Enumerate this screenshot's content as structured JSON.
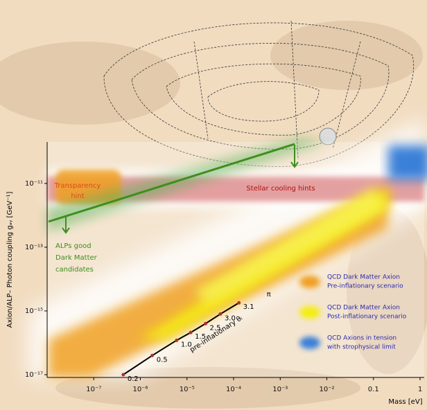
{
  "chart_data": {
    "type": "regions",
    "x_label": "Mass [eV]",
    "y_label": "Axion/ALP– Photon coupling gₐᵧ [GeV⁻¹]",
    "log_x": true,
    "log_y": true,
    "xlim": [
      1e-08,
      1
    ],
    "ylim": [
      1e-17,
      2e-10
    ],
    "xticks": [
      {
        "value": 1e-07,
        "label": "10⁻⁷"
      },
      {
        "value": 1e-06,
        "label": "10⁻⁶"
      },
      {
        "value": 1e-05,
        "label": "10⁻⁵"
      },
      {
        "value": 0.0001,
        "label": "10⁻⁴"
      },
      {
        "value": 0.001,
        "label": "10⁻³"
      },
      {
        "value": 0.01,
        "label": "10⁻²"
      },
      0.1,
      1
    ],
    "yticks": [
      {
        "value": 1e-11,
        "label": "10⁻¹¹"
      },
      {
        "value": 1e-13,
        "label": "10⁻¹³"
      },
      {
        "value": 1e-15,
        "label": "10⁻¹⁵"
      },
      {
        "value": 1e-17,
        "label": "10⁻¹⁷"
      }
    ],
    "annotations": {
      "transparency": [
        "Transparency",
        "hint"
      ],
      "stellar": [
        "Stellar cooling hints"
      ],
      "alps": [
        "ALPs good",
        "Dark Matter",
        "candidates"
      ]
    },
    "legend": [
      {
        "color": "#f0a020",
        "lines": [
          "QCD Dark Matter Axion",
          "Pre-inflationary scenario"
        ]
      },
      {
        "color": "#f4ee10",
        "lines": [
          "QCD Dark Matter Axion",
          "Post-inflationary scenario"
        ]
      },
      {
        "color": "#3a80d8",
        "lines": [
          "QCD Axions in tension",
          "with strophysical limit"
        ]
      }
    ],
    "pre_inflationary": {
      "label": "pre-inflationary θᵢ",
      "end_label": "π",
      "theta_labels": [
        "0.2",
        "0.5",
        "1.0",
        "1.5",
        "2.5",
        "3.0",
        "3.1"
      ],
      "x": [
        4.3e-07,
        1.8e-06,
        6e-06,
        1.2e-05,
        2.5e-05,
        5.2e-05,
        0.00013
      ],
      "y": [
        1e-17,
        4e-17,
        1.2e-16,
        2.1e-16,
        4e-16,
        8e-16,
        1.8e-15
      ]
    }
  }
}
